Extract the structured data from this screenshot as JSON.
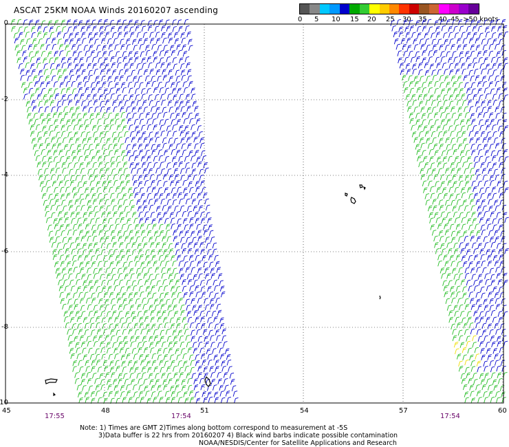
{
  "title": "ASCAT 25KM NOAA Winds 20160207 ascending",
  "legend": {
    "colors": [
      "#555555",
      "#888888",
      "#00c8ff",
      "#0099ff",
      "#0000cc",
      "#00aa00",
      "#33cc33",
      "#ffff00",
      "#ffcc00",
      "#ff8800",
      "#ff3300",
      "#cc0000",
      "#995522",
      "#cc6633",
      "#ff00ff",
      "#cc00cc",
      "#9900cc",
      "#660099"
    ],
    "labels": [
      "0",
      "5",
      "10",
      "15",
      "20",
      "25",
      "30",
      "35",
      "40",
      "45",
      ">50 knots"
    ]
  },
  "axes": {
    "x_ticks": [
      "45",
      "48",
      "51",
      "54",
      "57",
      "60"
    ],
    "y_ticks": [
      "0",
      "-2",
      "-4",
      "-6",
      "-8",
      "-10"
    ],
    "x_range": [
      45,
      60
    ],
    "y_range": [
      -10,
      0
    ],
    "grid": true
  },
  "swath_times": [
    "17:55",
    "17:54",
    "17:54"
  ],
  "notes": [
    "Note: 1) Times are GMT 2)Times along bottom correspond to measurement at -5S",
    "3)Data buffer is 22 hrs from 20160207 4) Black wind barbs indicate possible contamination",
    "NOAA/NESDIS/Center for Satellite Applications and Research"
  ],
  "wind_colors": {
    "green": "#22bb22",
    "blue": "#0000cc",
    "yellow": "#eedd00"
  }
}
